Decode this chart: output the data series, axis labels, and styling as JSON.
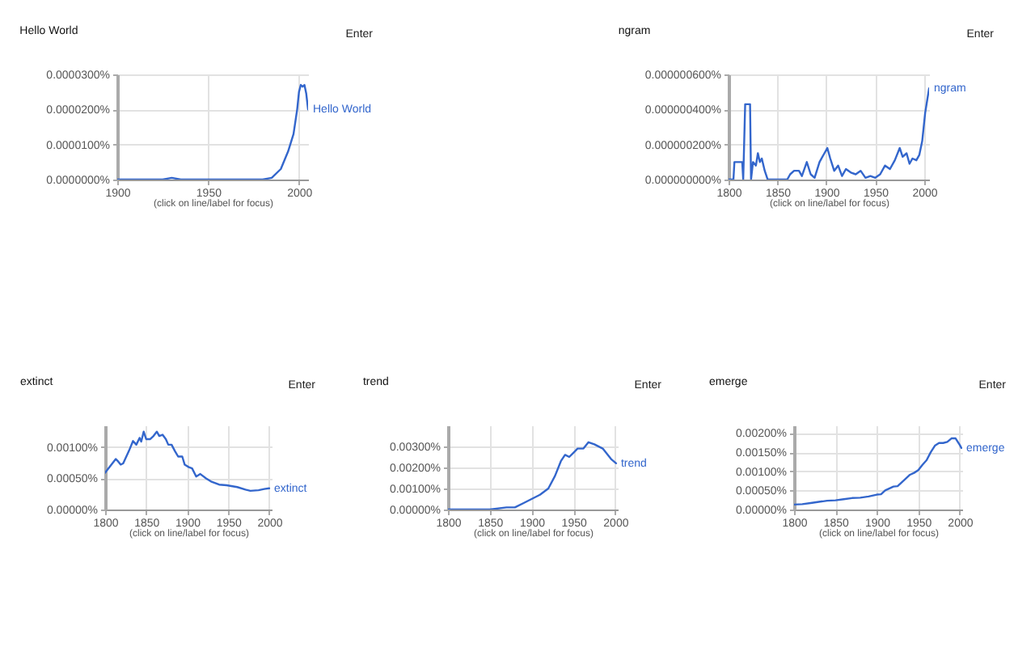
{
  "chart_data": [
    {
      "type": "line",
      "title": "Hello World",
      "xlabel": "(click on line/label for focus)",
      "annotations": [
        "Enter"
      ],
      "x": [
        1900,
        1925,
        1930,
        1935,
        1980,
        1985,
        1990,
        1994,
        1997,
        1999,
        2000,
        2001,
        2002,
        2003,
        2004,
        2005
      ],
      "series": [
        {
          "name": "Hello World",
          "color": "#3366cc",
          "values": [
            0,
            0,
            5e-07,
            0,
            0,
            5e-07,
            3e-06,
            8e-06,
            1.3e-05,
            2e-05,
            2.5e-05,
            2.7e-05,
            2.65e-05,
            2.7e-05,
            2.45e-05,
            2e-05
          ]
        }
      ],
      "xlim": [
        1900,
        2005
      ],
      "xticks": [
        1900,
        1950,
        2000
      ],
      "ylim": [
        0,
        3e-05
      ],
      "yticks": [
        {
          "value": 0,
          "label": "0.0000000%"
        },
        {
          "value": 1e-05,
          "label": "0.0000100%"
        },
        {
          "value": 2e-05,
          "label": "0.0000200%"
        },
        {
          "value": 3e-05,
          "label": "0.0000300%"
        }
      ],
      "grid": true
    },
    {
      "type": "line",
      "title": "ngram",
      "xlabel": "(click on line/label for focus)",
      "annotations": [
        "Enter"
      ],
      "x": [
        1800,
        1805,
        1806,
        1814,
        1815,
        1817,
        1822,
        1823,
        1825,
        1828,
        1830,
        1832,
        1834,
        1837,
        1840,
        1860,
        1863,
        1867,
        1872,
        1875,
        1880,
        1884,
        1888,
        1893,
        1898,
        1901,
        1904,
        1908,
        1912,
        1916,
        1920,
        1925,
        1930,
        1935,
        1940,
        1945,
        1950,
        1955,
        1960,
        1965,
        1970,
        1975,
        1978,
        1982,
        1985,
        1988,
        1992,
        1995,
        1998,
        2001,
        2003,
        2005
      ],
      "series": [
        {
          "name": "ngram",
          "color": "#3366cc",
          "values": [
            0,
            0,
            1e-07,
            1e-07,
            0,
            4.3e-07,
            4.3e-07,
            0,
            1e-07,
            8e-08,
            1.5e-07,
            1e-07,
            1.2e-07,
            5e-08,
            0,
            0,
            3e-08,
            5e-08,
            5e-08,
            2e-08,
            1e-07,
            3e-08,
            1e-08,
            1e-07,
            1.5e-07,
            1.8e-07,
            1.2e-07,
            5e-08,
            8e-08,
            2e-08,
            6e-08,
            4e-08,
            3e-08,
            5e-08,
            1e-08,
            2e-08,
            1e-08,
            3e-08,
            8e-08,
            6e-08,
            1.1e-07,
            1.8e-07,
            1.3e-07,
            1.5e-07,
            9e-08,
            1.2e-07,
            1.1e-07,
            1.4e-07,
            2.2e-07,
            3.8e-07,
            4.5e-07,
            5.2e-07
          ]
        }
      ],
      "xlim": [
        1800,
        2005
      ],
      "xticks": [
        1800,
        1850,
        1900,
        1950,
        2000
      ],
      "ylim": [
        0,
        6e-07
      ],
      "yticks": [
        {
          "value": 0,
          "label": "0.000000000%"
        },
        {
          "value": 2e-07,
          "label": "0.000000200%"
        },
        {
          "value": 4e-07,
          "label": "0.000000400%"
        },
        {
          "value": 6e-07,
          "label": "0.000000600%"
        }
      ],
      "grid": true
    },
    {
      "type": "line",
      "title": "extinct",
      "xlabel": "(click on line/label for focus)",
      "annotations": [
        "Enter"
      ],
      "x": [
        1800,
        1813,
        1816,
        1819,
        1822,
        1829,
        1834,
        1838,
        1842,
        1844,
        1847,
        1850,
        1855,
        1859,
        1863,
        1866,
        1870,
        1874,
        1877,
        1881,
        1885,
        1889,
        1894,
        1897,
        1902,
        1906,
        1911,
        1916,
        1923,
        1929,
        1939,
        1948,
        1961,
        1971,
        1977,
        1987,
        1994,
        2000
      ],
      "series": [
        {
          "name": "extinct",
          "color": "#3366cc",
          "values": [
            0.00059,
            0.00081,
            0.00077,
            0.00072,
            0.00074,
            0.00094,
            0.0011,
            0.00104,
            0.00115,
            0.00109,
            0.00125,
            0.00113,
            0.00113,
            0.00118,
            0.00125,
            0.00118,
            0.0012,
            0.00113,
            0.00104,
            0.00104,
            0.00094,
            0.00085,
            0.00085,
            0.00072,
            0.00068,
            0.00066,
            0.00053,
            0.00057,
            0.0005,
            0.00045,
            0.0004,
            0.00039,
            0.00036,
            0.00032,
            0.0003,
            0.00031,
            0.00033,
            0.00034
          ]
        }
      ],
      "xlim": [
        1800,
        2003
      ],
      "xticks": [
        1800,
        1850,
        1900,
        1950,
        2000
      ],
      "ylim": [
        0,
        0.00135
      ],
      "yticks": [
        {
          "value": 0,
          "label": "0.00000%"
        },
        {
          "value": 0.0005,
          "label": "0.00050%"
        },
        {
          "value": 0.001,
          "label": "0.00100%"
        }
      ],
      "grid": true
    },
    {
      "type": "line",
      "title": "trend",
      "xlabel": "(click on line/label for focus)",
      "annotations": [
        "Enter"
      ],
      "x": [
        1800,
        1850,
        1870,
        1880,
        1890,
        1900,
        1910,
        1920,
        1928,
        1935,
        1940,
        1945,
        1950,
        1955,
        1962,
        1968,
        1975,
        1985,
        1995,
        2001
      ],
      "series": [
        {
          "name": "trend",
          "color": "#3366cc",
          "values": [
            0,
            0,
            0.0001,
            0.0001,
            0.0003,
            0.0005,
            0.0007,
            0.001,
            0.0016,
            0.0023,
            0.0026,
            0.0025,
            0.0027,
            0.0029,
            0.0029,
            0.0032,
            0.0031,
            0.0029,
            0.0024,
            0.0022
          ]
        }
      ],
      "xlim": [
        1800,
        2003
      ],
      "xticks": [
        1800,
        1850,
        1900,
        1950,
        2000
      ],
      "ylim": [
        0,
        0.004
      ],
      "yticks": [
        {
          "value": 0,
          "label": "0.00000%"
        },
        {
          "value": 0.001,
          "label": "0.00100%"
        },
        {
          "value": 0.002,
          "label": "0.00200%"
        },
        {
          "value": 0.003,
          "label": "0.00300%"
        }
      ],
      "grid": true
    },
    {
      "type": "line",
      "title": "emerge",
      "xlabel": "(click on line/label for focus)",
      "annotations": [
        "Enter"
      ],
      "x": [
        1800,
        1810,
        1820,
        1830,
        1840,
        1850,
        1860,
        1870,
        1880,
        1890,
        1900,
        1905,
        1910,
        1920,
        1925,
        1930,
        1940,
        1945,
        1950,
        1955,
        1960,
        1965,
        1970,
        1975,
        1980,
        1985,
        1990,
        1995,
        2000,
        2002
      ],
      "series": [
        {
          "name": "emerge",
          "color": "#3366cc",
          "values": [
            0.00013,
            0.00014,
            0.00017,
            0.0002,
            0.00023,
            0.00024,
            0.00027,
            0.0003,
            0.00031,
            0.00034,
            0.00039,
            0.0004,
            0.0005,
            0.0006,
            0.00061,
            0.00071,
            0.00091,
            0.00096,
            0.00103,
            0.00117,
            0.00129,
            0.0015,
            0.00167,
            0.00174,
            0.00174,
            0.00177,
            0.00186,
            0.00186,
            0.00169,
            0.00161
          ]
        }
      ],
      "xlim": [
        1800,
        2003
      ],
      "xticks": [
        1800,
        1850,
        1900,
        1950,
        2000
      ],
      "ylim": [
        0,
        0.0022
      ],
      "yticks": [
        {
          "value": 0,
          "label": "0.00000%"
        },
        {
          "value": 0.0005,
          "label": "0.00050%"
        },
        {
          "value": 0.001,
          "label": "0.00100%"
        },
        {
          "value": 0.0015,
          "label": "0.00150%"
        },
        {
          "value": 0.002,
          "label": "0.00200%"
        }
      ],
      "grid": true
    }
  ]
}
